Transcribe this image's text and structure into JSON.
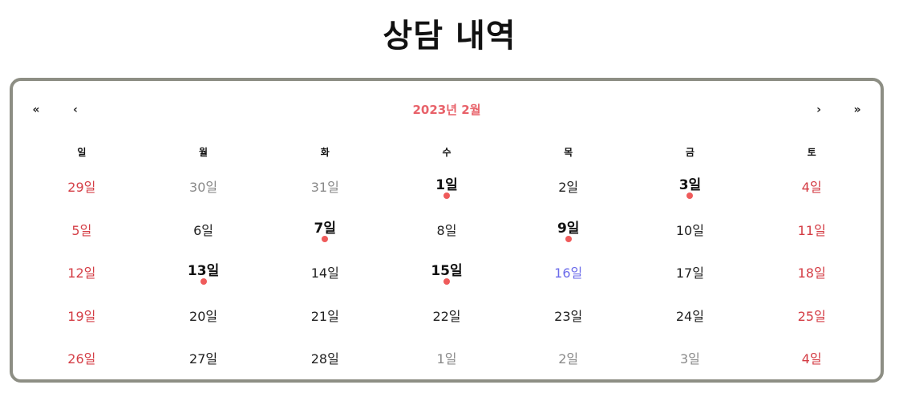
{
  "page": {
    "title": "상담 내역"
  },
  "calendar": {
    "nav": {
      "prev2": "«",
      "prev": "‹",
      "next": "›",
      "next2": "»"
    },
    "month_label": "2023년 2월",
    "weekdays": [
      "일",
      "월",
      "화",
      "수",
      "목",
      "금",
      "토"
    ],
    "days": [
      {
        "label": "29일",
        "weekend": true,
        "neighbor": true
      },
      {
        "label": "30일",
        "neighbor": true
      },
      {
        "label": "31일",
        "neighbor": true
      },
      {
        "label": "1일",
        "event": true
      },
      {
        "label": "2일"
      },
      {
        "label": "3일",
        "event": true
      },
      {
        "label": "4일",
        "weekend": true
      },
      {
        "label": "5일",
        "weekend": true
      },
      {
        "label": "6일"
      },
      {
        "label": "7일",
        "event": true
      },
      {
        "label": "8일"
      },
      {
        "label": "9일",
        "event": true
      },
      {
        "label": "10일"
      },
      {
        "label": "11일",
        "weekend": true
      },
      {
        "label": "12일",
        "weekend": true
      },
      {
        "label": "13일",
        "event": true
      },
      {
        "label": "14일"
      },
      {
        "label": "15일",
        "event": true
      },
      {
        "label": "16일",
        "today": true
      },
      {
        "label": "17일"
      },
      {
        "label": "18일",
        "weekend": true
      },
      {
        "label": "19일",
        "weekend": true
      },
      {
        "label": "20일"
      },
      {
        "label": "21일"
      },
      {
        "label": "22일"
      },
      {
        "label": "23일"
      },
      {
        "label": "24일"
      },
      {
        "label": "25일",
        "weekend": true
      },
      {
        "label": "26일",
        "weekend": true
      },
      {
        "label": "27일"
      },
      {
        "label": "28일"
      },
      {
        "label": "1일",
        "neighbor": true
      },
      {
        "label": "2일",
        "neighbor": true
      },
      {
        "label": "3일",
        "neighbor": true
      },
      {
        "label": "4일",
        "weekend": true,
        "neighbor": true
      }
    ],
    "colors": {
      "weekend": "#d43d45",
      "neighbor": "#8a8a8a",
      "today": "#6b6bea",
      "event_dot": "#ef5b5b",
      "month_label": "#e8626a",
      "border": "#8d8e84"
    }
  }
}
